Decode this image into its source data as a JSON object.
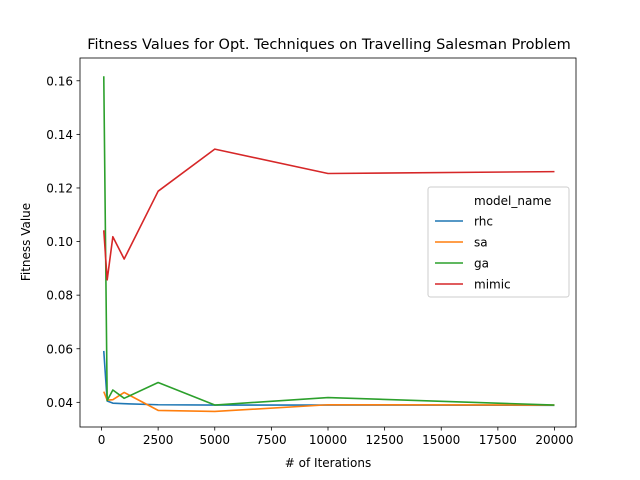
{
  "chart_data": {
    "type": "line",
    "title": "Fitness Values for Opt. Techniques on Travelling Salesman Problem",
    "xlabel": "# of Iterations",
    "ylabel": "Fitness Value",
    "xlim": [
      -950,
      20950
    ],
    "ylim": [
      0.0308,
      0.1685
    ],
    "xticks": [
      0,
      2500,
      5000,
      7500,
      10000,
      12500,
      15000,
      17500,
      20000
    ],
    "yticks": [
      0.04,
      0.06,
      0.08,
      0.1,
      0.12,
      0.14,
      0.16
    ],
    "xtick_labels": [
      "0",
      "2500",
      "5000",
      "7500",
      "10000",
      "12500",
      "15000",
      "17500",
      "20000"
    ],
    "ytick_labels": [
      "0.04",
      "0.06",
      "0.08",
      "0.10",
      "0.12",
      "0.14",
      "0.16"
    ],
    "grid": false,
    "legend": {
      "title": "model_name",
      "placement": "center-right"
    },
    "x": [
      100,
      250,
      500,
      1000,
      2500,
      5000,
      10000,
      20000
    ],
    "series": [
      {
        "name": "rhc",
        "color": "#1f77b4",
        "values": [
          0.0592,
          0.0405,
          0.0397,
          0.0395,
          0.0391,
          0.039,
          0.039,
          0.0389
        ]
      },
      {
        "name": "sa",
        "color": "#ff7f0e",
        "values": [
          0.044,
          0.0408,
          0.041,
          0.0437,
          0.037,
          0.0366,
          0.0391,
          0.039
        ]
      },
      {
        "name": "ga",
        "color": "#2ca02c",
        "values": [
          0.1617,
          0.0407,
          0.0446,
          0.0415,
          0.0474,
          0.039,
          0.0418,
          0.039
        ]
      },
      {
        "name": "mimic",
        "color": "#d62728",
        "values": [
          0.1042,
          0.0857,
          0.1018,
          0.0935,
          0.1188,
          0.1345,
          0.1254,
          0.1261
        ]
      }
    ]
  }
}
